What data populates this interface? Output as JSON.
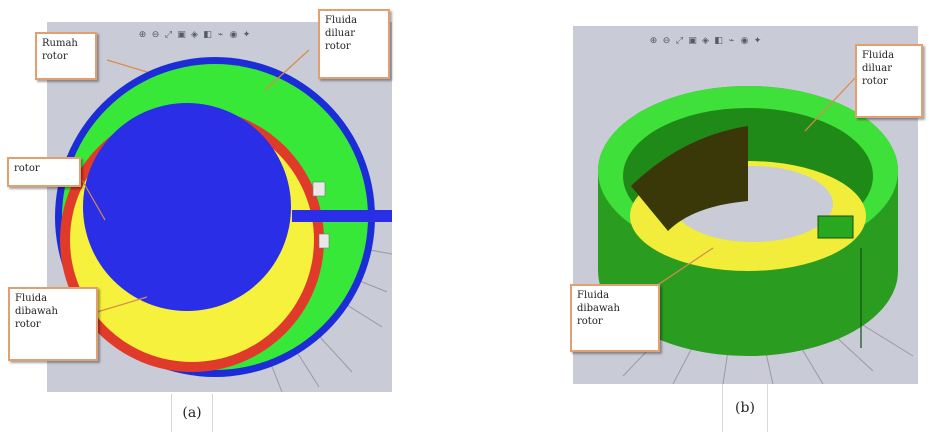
{
  "figure_a": {
    "caption": "(a)",
    "labels": {
      "rumah_rotor": "Rumah\nrotor",
      "fluida_diluar": "Fluida\ndiluar\nrotor",
      "rotor": "rotor",
      "fluida_dibawah": "Fluida\ndibawah\nrotor"
    }
  },
  "figure_b": {
    "caption": "(b)",
    "labels": {
      "fluida_diluar": "Fluida\ndiluar\nrotor",
      "fluida_dibawah": "Fluida\ndibawah\nrotor"
    }
  },
  "toolbar_icons": [
    "zoom-in-icon",
    "zoom-out-icon",
    "fit-icon",
    "view-icon",
    "cube-icon",
    "display-icon",
    "section-icon",
    "appearance-icon",
    "scene-icon"
  ],
  "colors": {
    "housing": "#1c2cd6",
    "outer_fluid": "#38e838",
    "rotor": "#e03a2a",
    "inner_fluid": "#f6f13c",
    "core": "#2a2ee6",
    "background": "#c9cbd6",
    "callout_border": "#e2a070"
  }
}
